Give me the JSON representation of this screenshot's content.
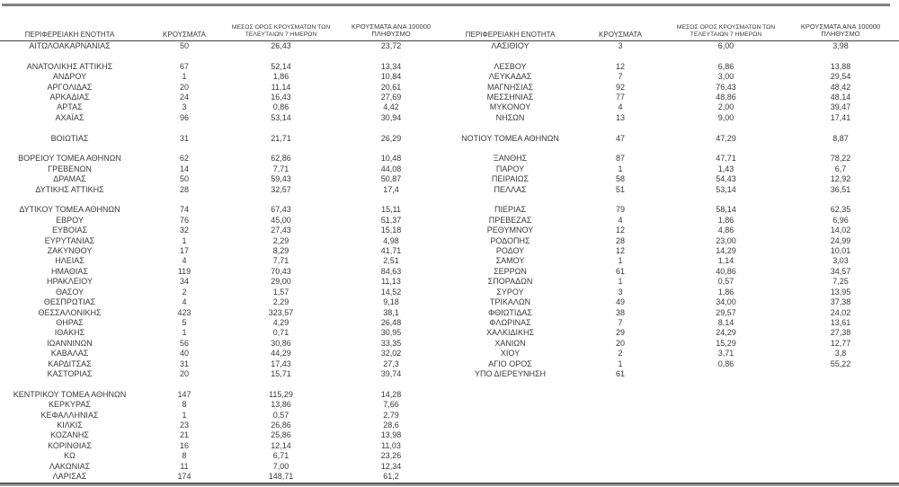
{
  "table": {
    "headers": {
      "region": "ΠΕΡΙΦΕΡΕΙΑΚΗ ΕΝΟΤΗΤΑ",
      "cases": "ΚΡΟΥΣΜΑΤΑ",
      "avg7_line1": "ΜΕΣΟΣ ΟΡΟΣ ΚΡΟΥΣΜΑΤΩΝ ΤΩΝ",
      "avg7_line2": "ΤΕΛΕΥΤΑΙΩΝ 7 ΗΜΕΡΩΝ",
      "per100k_line1": "ΚΡΟΥΣΜΑΤΑ ΑΝΑ 100000",
      "per100k_line2": "ΠΛΗΘΥΣΜΟ"
    },
    "rows": [
      {
        "left": {
          "name": "ΑΙΤΩΛΟΑΚΑΡΝΑΝΙΑΣ",
          "cases": "50",
          "avg7": "26,43",
          "per100k": "23,72"
        },
        "right": {
          "name": "ΛΑΣΙΘΙΟΥ",
          "cases": "3",
          "avg7": "6,00",
          "per100k": "3,98"
        }
      },
      {
        "left": null,
        "right": null
      },
      {
        "left": {
          "name": "ΑΝΑΤΟΛΙΚΗΣ ΑΤΤΙΚΗΣ",
          "cases": "67",
          "avg7": "52,14",
          "per100k": "13,34"
        },
        "right": {
          "name": "ΛΕΣΒΟΥ",
          "cases": "12",
          "avg7": "6,86",
          "per100k": "13,88"
        }
      },
      {
        "left": {
          "name": "ΑΝΔΡΟΥ",
          "cases": "1",
          "avg7": "1,86",
          "per100k": "10,84"
        },
        "right": {
          "name": "ΛΕΥΚΑΔΑΣ",
          "cases": "7",
          "avg7": "3,00",
          "per100k": "29,54"
        }
      },
      {
        "left": {
          "name": "ΑΡΓΟΛΙΔΑΣ",
          "cases": "20",
          "avg7": "11,14",
          "per100k": "20,61"
        },
        "right": {
          "name": "ΜΑΓΝΗΣΙΑΣ",
          "cases": "92",
          "avg7": "76,43",
          "per100k": "48,42"
        }
      },
      {
        "left": {
          "name": "ΑΡΚΑΔΙΑΣ",
          "cases": "24",
          "avg7": "16,43",
          "per100k": "27,69"
        },
        "right": {
          "name": "ΜΕΣΣΗΝΙΑΣ",
          "cases": "77",
          "avg7": "48,86",
          "per100k": "48,14"
        }
      },
      {
        "left": {
          "name": "ΑΡΤΑΣ",
          "cases": "3",
          "avg7": "0,86",
          "per100k": "4,42"
        },
        "right": {
          "name": "ΜΥΚΟΝΟΥ",
          "cases": "4",
          "avg7": "2,00",
          "per100k": "39,47"
        }
      },
      {
        "left": {
          "name": "ΑΧΑΪΑΣ",
          "cases": "96",
          "avg7": "53,14",
          "per100k": "30,94"
        },
        "right": {
          "name": "ΝΗΣΩΝ",
          "cases": "13",
          "avg7": "9,00",
          "per100k": "17,41"
        }
      },
      {
        "left": null,
        "right": null
      },
      {
        "left": {
          "name": "ΒΟΙΩΤΙΑΣ",
          "cases": "31",
          "avg7": "21,71",
          "per100k": "26,29"
        },
        "right": {
          "name": "ΝΟΤΙΟΥ ΤΟΜΕΑ ΑΘΗΝΩΝ",
          "cases": "47",
          "avg7": "47,29",
          "per100k": "8,87"
        }
      },
      {
        "left": null,
        "right": null
      },
      {
        "left": {
          "name": "ΒΟΡΕΙΟΥ ΤΟΜΕΑ ΑΘΗΝΩΝ",
          "cases": "62",
          "avg7": "62,86",
          "per100k": "10,48"
        },
        "right": {
          "name": "ΞΑΝΘΗΣ",
          "cases": "87",
          "avg7": "47,71",
          "per100k": "78,22"
        }
      },
      {
        "left": {
          "name": "ΓΡΕΒΕΝΩΝ",
          "cases": "14",
          "avg7": "7,71",
          "per100k": "44,08"
        },
        "right": {
          "name": "ΠΑΡΟΥ",
          "cases": "1",
          "avg7": "1,43",
          "per100k": "6,7"
        }
      },
      {
        "left": {
          "name": "ΔΡΑΜΑΣ",
          "cases": "50",
          "avg7": "59,43",
          "per100k": "50,87"
        },
        "right": {
          "name": "ΠΕΙΡΑΙΩΣ",
          "cases": "58",
          "avg7": "54,43",
          "per100k": "12,92"
        }
      },
      {
        "left": {
          "name": "ΔΥΤΙΚΗΣ ΑΤΤΙΚΗΣ",
          "cases": "28",
          "avg7": "32,57",
          "per100k": "17,4"
        },
        "right": {
          "name": "ΠΕΛΛΑΣ",
          "cases": "51",
          "avg7": "53,14",
          "per100k": "36,51"
        }
      },
      {
        "left": null,
        "right": null
      },
      {
        "left": {
          "name": "ΔΥΤΙΚΟΥ ΤΟΜΕΑ ΑΘΗΝΩΝ",
          "cases": "74",
          "avg7": "67,43",
          "per100k": "15,11"
        },
        "right": {
          "name": "ΠΙΕΡΙΑΣ",
          "cases": "79",
          "avg7": "58,14",
          "per100k": "62,35"
        }
      },
      {
        "left": {
          "name": "ΕΒΡΟΥ",
          "cases": "76",
          "avg7": "45,00",
          "per100k": "51,37"
        },
        "right": {
          "name": "ΠΡΕΒΕΖΑΣ",
          "cases": "4",
          "avg7": "1,86",
          "per100k": "6,96"
        }
      },
      {
        "left": {
          "name": "ΕΥΒΟΙΑΣ",
          "cases": "32",
          "avg7": "27,43",
          "per100k": "15,18"
        },
        "right": {
          "name": "ΡΕΘΥΜΝΟΥ",
          "cases": "12",
          "avg7": "4,86",
          "per100k": "14,02"
        }
      },
      {
        "left": {
          "name": "ΕΥΡΥΤΑΝΙΑΣ",
          "cases": "1",
          "avg7": "2,29",
          "per100k": "4,98"
        },
        "right": {
          "name": "ΡΟΔΟΠΗΣ",
          "cases": "28",
          "avg7": "23,00",
          "per100k": "24,99"
        }
      },
      {
        "left": {
          "name": "ΖΑΚΥΝΘΟΥ",
          "cases": "17",
          "avg7": "8,29",
          "per100k": "41,71"
        },
        "right": {
          "name": "ΡΟΔΟΥ",
          "cases": "12",
          "avg7": "14,29",
          "per100k": "10,01"
        }
      },
      {
        "left": {
          "name": "ΗΛΕΙΑΣ",
          "cases": "4",
          "avg7": "7,71",
          "per100k": "2,51"
        },
        "right": {
          "name": "ΣΑΜΟΥ",
          "cases": "1",
          "avg7": "1,14",
          "per100k": "3,03"
        }
      },
      {
        "left": {
          "name": "ΗΜΑΘΙΑΣ",
          "cases": "119",
          "avg7": "70,43",
          "per100k": "84,63"
        },
        "right": {
          "name": "ΣΕΡΡΩΝ",
          "cases": "61",
          "avg7": "40,86",
          "per100k": "34,57"
        }
      },
      {
        "left": {
          "name": "ΗΡΑΚΛΕΙΟΥ",
          "cases": "34",
          "avg7": "29,00",
          "per100k": "11,13"
        },
        "right": {
          "name": "ΣΠΟΡΑΔΩΝ",
          "cases": "1",
          "avg7": "0,57",
          "per100k": "7,25"
        }
      },
      {
        "left": {
          "name": "ΘΑΣΟΥ",
          "cases": "2",
          "avg7": "1,57",
          "per100k": "14,52"
        },
        "right": {
          "name": "ΣΥΡΟΥ",
          "cases": "3",
          "avg7": "1,86",
          "per100k": "13,95"
        }
      },
      {
        "left": {
          "name": "ΘΕΣΠΡΩΤΙΑΣ",
          "cases": "4",
          "avg7": "2,29",
          "per100k": "9,18"
        },
        "right": {
          "name": "ΤΡΙΚΑΛΩΝ",
          "cases": "49",
          "avg7": "34,00",
          "per100k": "37,38"
        }
      },
      {
        "left": {
          "name": "ΘΕΣΣΑΛΟΝΙΚΗΣ",
          "cases": "423",
          "avg7": "323,57",
          "per100k": "38,1"
        },
        "right": {
          "name": "ΦΘΙΩΤΙΔΑΣ",
          "cases": "38",
          "avg7": "29,57",
          "per100k": "24,02"
        }
      },
      {
        "left": {
          "name": "ΘΗΡΑΣ",
          "cases": "5",
          "avg7": "4,29",
          "per100k": "26,48"
        },
        "right": {
          "name": "ΦΛΩΡΙΝΑΣ",
          "cases": "7",
          "avg7": "8,14",
          "per100k": "13,61"
        }
      },
      {
        "left": {
          "name": "ΙΘΑΚΗΣ",
          "cases": "1",
          "avg7": "0,71",
          "per100k": "30,95"
        },
        "right": {
          "name": "ΧΑΛΚΙΔΙΚΗΣ",
          "cases": "29",
          "avg7": "24,29",
          "per100k": "27,38"
        }
      },
      {
        "left": {
          "name": "ΙΩΑΝΝΙΝΩΝ",
          "cases": "56",
          "avg7": "30,86",
          "per100k": "33,35"
        },
        "right": {
          "name": "ΧΑΝΙΩΝ",
          "cases": "20",
          "avg7": "15,29",
          "per100k": "12,77"
        }
      },
      {
        "left": {
          "name": "ΚΑΒΑΛΑΣ",
          "cases": "40",
          "avg7": "44,29",
          "per100k": "32,02"
        },
        "right": {
          "name": "ΧΙΟΥ",
          "cases": "2",
          "avg7": "3,71",
          "per100k": "3,8"
        }
      },
      {
        "left": {
          "name": "ΚΑΡΔΙΤΣΑΣ",
          "cases": "31",
          "avg7": "17,43",
          "per100k": "27,3"
        },
        "right": {
          "name": "ΑΓΙΟ ΟΡΟΣ",
          "cases": "1",
          "avg7": "0,86",
          "per100k": "55,22"
        }
      },
      {
        "left": {
          "name": "ΚΑΣΤΟΡΙΑΣ",
          "cases": "20",
          "avg7": "15,71",
          "per100k": "39,74"
        },
        "right": {
          "name": "ΥΠΟ ΔΙΕΡΕΥΝΗΣΗ",
          "cases": "61",
          "avg7": "",
          "per100k": ""
        }
      },
      {
        "left": null,
        "right": null
      },
      {
        "left": {
          "name": "ΚΕΝΤΡΙΚΟΥ ΤΟΜΕΑ ΑΘΗΝΩΝ",
          "cases": "147",
          "avg7": "115,29",
          "per100k": "14,28"
        },
        "right": null
      },
      {
        "left": {
          "name": "ΚΕΡΚΥΡΑΣ",
          "cases": "8",
          "avg7": "13,86",
          "per100k": "7,66"
        },
        "right": null
      },
      {
        "left": {
          "name": "ΚΕΦΑΛΛΗΝΙΑΣ",
          "cases": "1",
          "avg7": "0,57",
          "per100k": "2,79"
        },
        "right": null
      },
      {
        "left": {
          "name": "ΚΙΛΚΙΣ",
          "cases": "23",
          "avg7": "26,86",
          "per100k": "28,6"
        },
        "right": null
      },
      {
        "left": {
          "name": "ΚΟΖΑΝΗΣ",
          "cases": "21",
          "avg7": "25,86",
          "per100k": "13,98"
        },
        "right": null
      },
      {
        "left": {
          "name": "ΚΟΡΙΝΘΙΑΣ",
          "cases": "16",
          "avg7": "12,14",
          "per100k": "11,03"
        },
        "right": null
      },
      {
        "left": {
          "name": "ΚΩ",
          "cases": "8",
          "avg7": "6,71",
          "per100k": "23,26"
        },
        "right": null
      },
      {
        "left": {
          "name": "ΛΑΚΩΝΙΑΣ",
          "cases": "11",
          "avg7": "7,00",
          "per100k": "12,34"
        },
        "right": null
      },
      {
        "left": {
          "name": "ΛΑΡΙΣΑΣ",
          "cases": "174",
          "avg7": "148,71",
          "per100k": "61,2"
        },
        "right": null
      }
    ],
    "colors": {
      "text": "#3a3a3a",
      "top_border": "#808080",
      "header_underline": "#404040",
      "bottom_border_dark": "#5a5a5a",
      "bottom_border_light": "#9e9e9e",
      "background": "#ffffff"
    }
  }
}
